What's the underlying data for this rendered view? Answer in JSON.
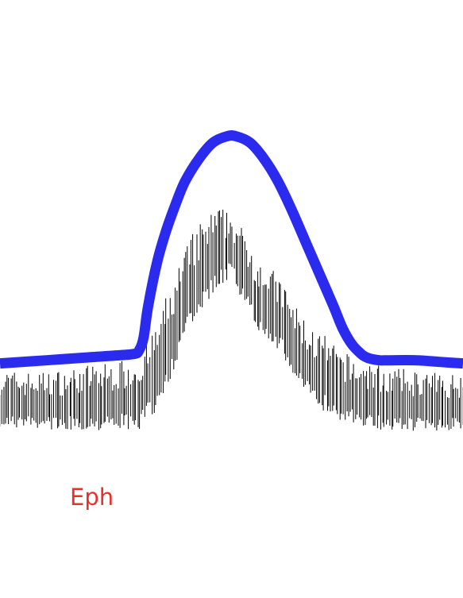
{
  "chart_data": {
    "type": "line",
    "title": "",
    "xlabel": "",
    "ylabel": "",
    "xlim": [
      0,
      1
    ],
    "ylim": [
      0,
      1
    ],
    "grid": false,
    "legend": "none",
    "annotations": [
      {
        "text": "Eph",
        "color": "#e8302f"
      }
    ],
    "series": [
      {
        "style": "bold smooth curve",
        "color": "#2b2bf0",
        "x": [
          0.0,
          0.1,
          0.2,
          0.25,
          0.29,
          0.3,
          0.31,
          0.32,
          0.34,
          0.36,
          0.38,
          0.4,
          0.43,
          0.46,
          0.49,
          0.51,
          0.54,
          0.57,
          0.6,
          0.63,
          0.66,
          0.69,
          0.72,
          0.74,
          0.76,
          0.78,
          0.79,
          0.8,
          0.82,
          0.84,
          0.9,
          0.95,
          1.0
        ],
        "y": [
          0.1,
          0.11,
          0.12,
          0.125,
          0.13,
          0.14,
          0.18,
          0.28,
          0.42,
          0.52,
          0.6,
          0.67,
          0.74,
          0.79,
          0.81,
          0.81,
          0.79,
          0.74,
          0.67,
          0.58,
          0.48,
          0.38,
          0.28,
          0.21,
          0.16,
          0.13,
          0.12,
          0.115,
          0.11,
          0.11,
          0.11,
          0.105,
          0.1
        ]
      },
      {
        "style": "noisy vertical spikes",
        "color": "#000000",
        "x": [
          0.0,
          0.05,
          0.1,
          0.15,
          0.2,
          0.25,
          0.3,
          0.33,
          0.36,
          0.39,
          0.42,
          0.45,
          0.47,
          0.5,
          0.52,
          0.55,
          0.58,
          0.61,
          0.64,
          0.67,
          0.7,
          0.73,
          0.76,
          0.8,
          0.85,
          0.9,
          0.95,
          1.0
        ],
        "y": [
          -0.04,
          -0.045,
          -0.045,
          -0.045,
          -0.04,
          -0.035,
          -0.03,
          0.02,
          0.12,
          0.23,
          0.32,
          0.38,
          0.42,
          0.44,
          0.38,
          0.3,
          0.25,
          0.2,
          0.12,
          0.06,
          0.03,
          0.0,
          -0.02,
          -0.035,
          -0.045,
          -0.05,
          -0.05,
          -0.05
        ],
        "spread": [
          0.12,
          0.12,
          0.12,
          0.13,
          0.14,
          0.14,
          0.16,
          0.18,
          0.19,
          0.2,
          0.2,
          0.19,
          0.17,
          0.14,
          0.15,
          0.16,
          0.16,
          0.16,
          0.16,
          0.16,
          0.16,
          0.15,
          0.14,
          0.14,
          0.13,
          0.13,
          0.12,
          0.12
        ]
      }
    ]
  }
}
